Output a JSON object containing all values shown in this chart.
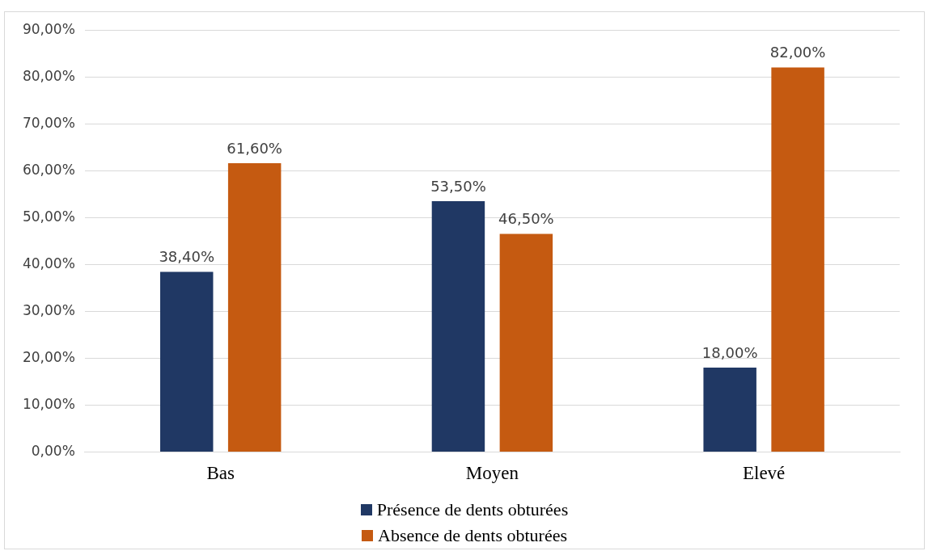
{
  "chart_data": {
    "type": "bar",
    "categories": [
      "Bas",
      "Moyen",
      "Elevé"
    ],
    "series": [
      {
        "name": "Présence de dents obturées",
        "color": "#203864",
        "values": [
          38.4,
          53.5,
          18.0
        ],
        "value_labels": [
          "38,40%",
          "53,50%",
          "18,00%"
        ]
      },
      {
        "name": "Absence de dents obturées",
        "color": "#c55a11",
        "values": [
          61.6,
          46.5,
          82.0
        ],
        "value_labels": [
          "61,60%",
          "46,50%",
          "82,00%"
        ]
      }
    ],
    "ylim": [
      0,
      90
    ],
    "yticks": [
      {
        "value": 0,
        "label": "0,00%"
      },
      {
        "value": 10,
        "label": "10,00%"
      },
      {
        "value": 20,
        "label": "20,00%"
      },
      {
        "value": 30,
        "label": "30,00%"
      },
      {
        "value": 40,
        "label": "40,00%"
      },
      {
        "value": 50,
        "label": "50,00%"
      },
      {
        "value": 60,
        "label": "60,00%"
      },
      {
        "value": 70,
        "label": "70,00%"
      },
      {
        "value": 80,
        "label": "80,00%"
      },
      {
        "value": 90,
        "label": "90,00%"
      }
    ],
    "grid": "y",
    "legend": "bottom"
  }
}
